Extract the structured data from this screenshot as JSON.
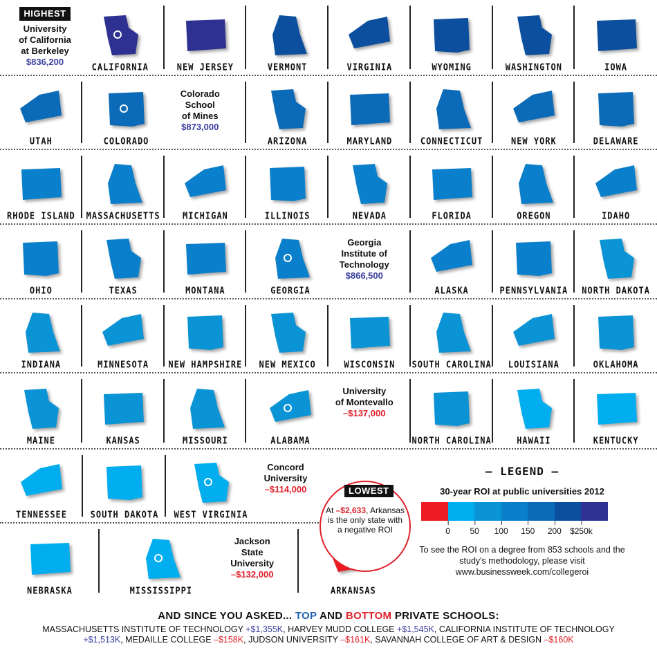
{
  "colors": {
    "negative": "#ed1c24",
    "0-50": "#00adef",
    "50-100": "#0a94d6",
    "100-150": "#0a7fcb",
    "150-200": "#0b6bb8",
    "200-250": "#0b4f9e",
    "250+": "#2e3192"
  },
  "rows": [
    [
      {
        "name": "CALIFORNIA",
        "roi": "250+",
        "callout": {
          "badge": "HIGHEST",
          "lines": [
            "University",
            "of California",
            "at Berkeley"
          ],
          "value": "$836,200",
          "side": "left"
        }
      },
      {
        "name": "NEW JERSEY",
        "roi": "250+"
      },
      {
        "name": "VERMONT",
        "roi": "200-250"
      },
      {
        "name": "VIRGINIA",
        "roi": "200-250"
      },
      {
        "name": "WYOMING",
        "roi": "200-250"
      },
      {
        "name": "WASHINGTON",
        "roi": "200-250"
      },
      {
        "name": "IOWA",
        "roi": "200-250"
      }
    ],
    [
      {
        "name": "UTAH",
        "roi": "150-200"
      },
      {
        "name": "COLORADO",
        "roi": "150-200",
        "callout": {
          "lines": [
            "Colorado",
            "School",
            "of Mines"
          ],
          "value": "$873,000",
          "side": "right"
        }
      },
      {
        "name": "ARIZONA",
        "roi": "150-200"
      },
      {
        "name": "MARYLAND",
        "roi": "150-200"
      },
      {
        "name": "CONNECTICUT",
        "roi": "150-200"
      },
      {
        "name": "NEW YORK",
        "roi": "150-200"
      },
      {
        "name": "DELAWARE",
        "roi": "150-200"
      }
    ],
    [
      {
        "name": "RHODE ISLAND",
        "roi": "100-150"
      },
      {
        "name": "MASSACHUSETTS",
        "roi": "100-150"
      },
      {
        "name": "MICHIGAN",
        "roi": "100-150"
      },
      {
        "name": "ILLINOIS",
        "roi": "100-150"
      },
      {
        "name": "NEVADA",
        "roi": "100-150"
      },
      {
        "name": "FLORIDA",
        "roi": "100-150"
      },
      {
        "name": "OREGON",
        "roi": "100-150"
      },
      {
        "name": "IDAHO",
        "roi": "100-150"
      }
    ],
    [
      {
        "name": "OHIO",
        "roi": "100-150"
      },
      {
        "name": "TEXAS",
        "roi": "100-150"
      },
      {
        "name": "MONTANA",
        "roi": "100-150"
      },
      {
        "name": "GEORGIA",
        "roi": "100-150",
        "callout": {
          "lines": [
            "Georgia",
            "Institute of",
            "Technology"
          ],
          "value": "$866,500",
          "side": "right"
        }
      },
      {
        "name": "ALASKA",
        "roi": "100-150"
      },
      {
        "name": "PENNSYLVANIA",
        "roi": "100-150"
      },
      {
        "name": "NORTH DAKOTA",
        "roi": "50-100"
      }
    ],
    [
      {
        "name": "INDIANA",
        "roi": "50-100"
      },
      {
        "name": "MINNESOTA",
        "roi": "50-100"
      },
      {
        "name": "NEW HAMPSHIRE",
        "roi": "50-100"
      },
      {
        "name": "NEW MEXICO",
        "roi": "50-100"
      },
      {
        "name": "WISCONSIN",
        "roi": "50-100"
      },
      {
        "name": "SOUTH CAROLINA",
        "roi": "50-100"
      },
      {
        "name": "LOUISIANA",
        "roi": "50-100"
      },
      {
        "name": "OKLAHOMA",
        "roi": "50-100"
      }
    ],
    [
      {
        "name": "MAINE",
        "roi": "50-100"
      },
      {
        "name": "KANSAS",
        "roi": "50-100"
      },
      {
        "name": "MISSOURI",
        "roi": "50-100"
      },
      {
        "name": "ALABAMA",
        "roi": "50-100",
        "callout": {
          "lines": [
            "University",
            "of Montevallo"
          ],
          "value": "–$137,000",
          "negative": true,
          "side": "right"
        }
      },
      {
        "name": "NORTH CAROLINA",
        "roi": "50-100"
      },
      {
        "name": "HAWAII",
        "roi": "0-50"
      },
      {
        "name": "KENTUCKY",
        "roi": "0-50"
      }
    ],
    [
      {
        "name": "TENNESSEE",
        "roi": "0-50"
      },
      {
        "name": "SOUTH DAKOTA",
        "roi": "0-50"
      },
      {
        "name": "WEST VIRGINIA",
        "roi": "0-50",
        "callout": {
          "lines": [
            "Concord",
            "University"
          ],
          "value": "–$114,000",
          "negative": true,
          "side": "right"
        }
      }
    ],
    [
      {
        "name": "NEBRASKA",
        "roi": "0-50"
      },
      {
        "name": "MISSISSIPPI",
        "roi": "0-50",
        "callout": {
          "lines": [
            "Jackson",
            "State",
            "University"
          ],
          "value": "–$132,000",
          "negative": true,
          "side": "right"
        }
      },
      {
        "name": "ARKANSAS",
        "roi": "negative"
      }
    ]
  ],
  "lowest": {
    "badge": "LOWEST",
    "pre": "At ",
    "value": "–$2,633",
    "post": ", Arkansas is the only state with a negative ROI"
  },
  "legend": {
    "title": "– LEGEND –",
    "subtitle": "30-year ROI at public universities 2012",
    "ticks": [
      "0",
      "50",
      "100",
      "150",
      "200",
      "$250k"
    ],
    "note": "To see the ROI on a degree from 853 schools and the study's methodology, please visit www.businessweek.com/collegeroi"
  },
  "bottom": {
    "h_pre": "AND SINCE YOU ASKED... ",
    "top": "TOP",
    "and": " AND ",
    "bottom": "BOTTOM",
    "h_post": " PRIVATE SCHOOLS:",
    "schools": [
      {
        "name": "MASSACHUSETTS INSTITUTE OF TECHNOLOGY",
        "value": "+$1,355K"
      },
      {
        "name": "HARVEY MUDD COLLEGE",
        "value": "+$1,545K"
      },
      {
        "name": "CALIFORNIA INSTITUTE OF TECHNOLOGY",
        "value": "+$1,513K"
      },
      {
        "name": "MEDAILLE COLLEGE",
        "value": "–$158K"
      },
      {
        "name": "JUDSON UNIVERSITY",
        "value": "–$161K"
      },
      {
        "name": "SAVANNAH COLLEGE OF ART & DESIGN",
        "value": "–$160K"
      }
    ]
  }
}
